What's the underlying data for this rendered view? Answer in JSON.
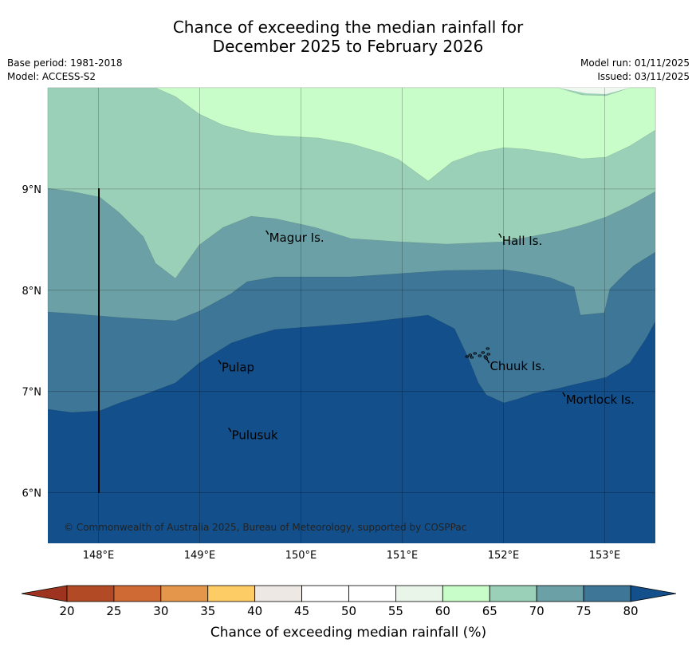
{
  "title": {
    "line1": "Chance of exceeding the median rainfall for",
    "line2": "December 2025 to February 2026"
  },
  "meta": {
    "base_period": "Base period: 1981-2018",
    "model": "Model: ACCESS-S2",
    "model_run": "Model run: 01/11/2025",
    "issued": "Issued: 03/11/2025"
  },
  "map": {
    "lon_range": [
      147.5,
      153.5
    ],
    "lat_range": [
      5.5,
      10.0
    ],
    "lon_ticks": [
      {
        "value": 148,
        "label": "148°E"
      },
      {
        "value": 149,
        "label": "149°E"
      },
      {
        "value": 150,
        "label": "150°E"
      },
      {
        "value": 151,
        "label": "151°E"
      },
      {
        "value": 152,
        "label": "152°E"
      },
      {
        "value": 153,
        "label": "153°E"
      }
    ],
    "lat_ticks": [
      {
        "value": 9,
        "label": "9°N"
      },
      {
        "value": 8,
        "label": "8°N"
      },
      {
        "value": 7,
        "label": "7°N"
      },
      {
        "value": 6,
        "label": "6°N"
      }
    ],
    "places": [
      {
        "name": "Magur Is.",
        "lon": 149.67,
        "lat": 8.55
      },
      {
        "name": "Hall Is.",
        "lon": 151.97,
        "lat": 8.52
      },
      {
        "name": "Pulap",
        "lon": 149.2,
        "lat": 7.27
      },
      {
        "name": "Chuuk Is.",
        "lon": 151.85,
        "lat": 7.28
      },
      {
        "name": "Mortlock Is.",
        "lon": 152.6,
        "lat": 6.95
      },
      {
        "name": "Pulusuk",
        "lon": 149.3,
        "lat": 6.6
      }
    ],
    "copyright": "© Commonwealth of Australia 2025, Bureau of Meteorology, supported by COSPPac",
    "zone_colors": {
      "65": "#c8fcc8",
      "70": "#9bd0b8",
      "75": "#6ba1a6",
      "80": "#3e7697",
      "85": "#134f8a"
    }
  },
  "colorbar": {
    "title": "Chance of exceeding median rainfall (%)",
    "ticks": [
      "20",
      "25",
      "30",
      "35",
      "40",
      "45",
      "50",
      "55",
      "60",
      "65",
      "70",
      "75",
      "80"
    ],
    "colors": [
      "#b34a26",
      "#cf6a35",
      "#e4974b",
      "#fdcc64",
      "#ede8e4",
      "#ffffff",
      "#ffffff",
      "#e8f5e8",
      "#c8fcc8",
      "#9bd0b8",
      "#6ba1a6",
      "#3e7697"
    ],
    "under_color": "#9e3320",
    "over_color": "#134f8a"
  }
}
